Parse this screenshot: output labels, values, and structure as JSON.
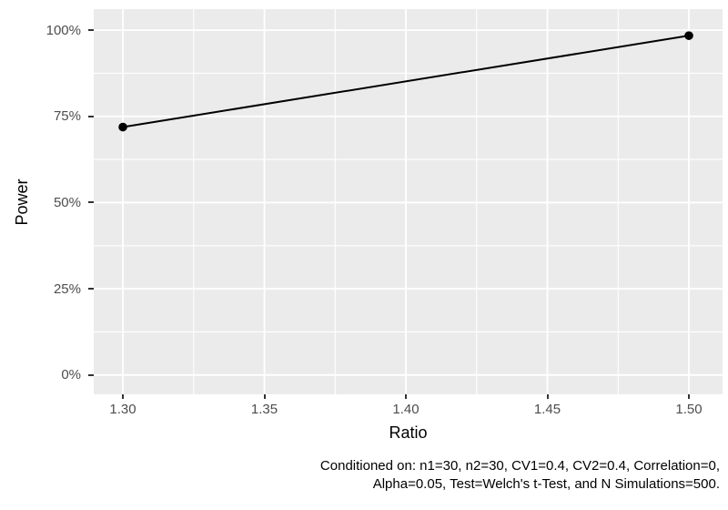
{
  "chart_data": {
    "type": "line",
    "title": "",
    "xlabel": "Ratio",
    "ylabel": "Power",
    "x": [
      1.3,
      1.5
    ],
    "y": [
      71.9,
      98.4
    ],
    "y_unit": "percent",
    "series": [
      {
        "name": "Power",
        "x": [
          1.3,
          1.5
        ],
        "y": [
          71.9,
          98.4
        ]
      }
    ],
    "x_ticks": [
      1.3,
      1.35,
      1.4,
      1.45,
      1.5
    ],
    "x_tick_labels": [
      "1.30",
      "1.35",
      "1.40",
      "1.45",
      "1.50"
    ],
    "x_minor_ticks": [
      1.325,
      1.375,
      1.425,
      1.475
    ],
    "y_ticks": [
      0,
      25,
      50,
      75,
      100
    ],
    "y_tick_labels": [
      "0%",
      "25%",
      "50%",
      "75%",
      "100%"
    ],
    "y_minor_ticks": [
      12.5,
      37.5,
      62.5,
      87.5
    ],
    "xlim": [
      1.2897,
      1.5119
    ],
    "ylim": [
      -5.6,
      106.1
    ],
    "grid": true,
    "legend": "none"
  },
  "axes": {
    "x_title": "Ratio",
    "y_title": "Power"
  },
  "caption": {
    "line1": "Conditioned on: n1=30, n2=30, CV1=0.4, CV2=0.4, Correlation=0,",
    "line2": "Alpha=0.05, Test=Welch's t-Test, and N Simulations=500."
  },
  "colors": {
    "panel_background": "#EBEBEB",
    "grid_line": "#FFFFFF",
    "tick_label": "#4D4D4D",
    "tick_mark": "#333333",
    "data_line": "#000000",
    "data_point": "#000000",
    "title_text": "#000000",
    "caption_text": "#000000",
    "page_background": "#FFFFFF"
  }
}
